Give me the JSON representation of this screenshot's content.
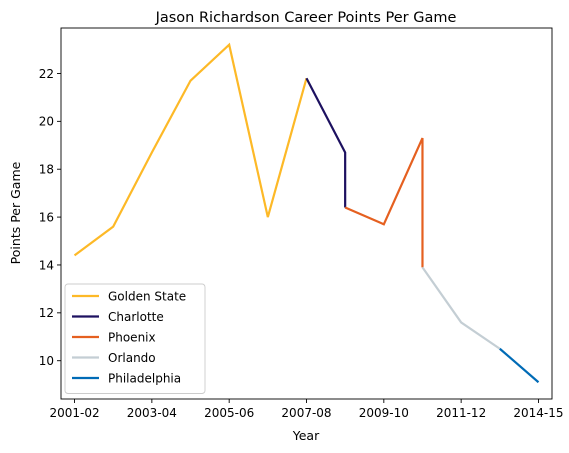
{
  "chart_data": {
    "type": "line",
    "title": "Jason Richardson Career Points Per Game",
    "xlabel": "Year",
    "ylabel": "Points Per Game",
    "x_tick_labels": [
      "2001-02",
      "2003-04",
      "2005-06",
      "2007-08",
      "2009-10",
      "2011-12",
      "2014-15"
    ],
    "x_tick_positions": [
      2001,
      2003,
      2005,
      2007,
      2009,
      2011,
      2013
    ],
    "y_ticks": [
      10,
      12,
      14,
      16,
      18,
      20,
      22
    ],
    "xlim": [
      2000.65,
      2013.35
    ],
    "ylim": [
      8.4,
      23.9
    ],
    "grid": false,
    "legend_position": "lower-left",
    "series": [
      {
        "name": "Golden State",
        "color": "#FDB927",
        "x": [
          2001,
          2002,
          2003,
          2004,
          2005,
          2006,
          2007
        ],
        "y": [
          14.4,
          15.6,
          18.7,
          21.7,
          23.2,
          16.0,
          21.8
        ]
      },
      {
        "name": "Charlotte",
        "color": "#1D1160",
        "x": [
          2007,
          2008,
          2008
        ],
        "y": [
          21.8,
          18.7,
          16.4
        ]
      },
      {
        "name": "Phoenix",
        "color": "#E56020",
        "x": [
          2008,
          2009,
          2010,
          2010
        ],
        "y": [
          16.4,
          15.7,
          19.3,
          13.9
        ]
      },
      {
        "name": "Orlando",
        "color": "#C4CED4",
        "x": [
          2010,
          2011,
          2012
        ],
        "y": [
          13.9,
          11.6,
          10.5
        ]
      },
      {
        "name": "Philadelphia",
        "color": "#006BB6",
        "x": [
          2012,
          2013
        ],
        "y": [
          10.5,
          9.1
        ]
      }
    ]
  }
}
